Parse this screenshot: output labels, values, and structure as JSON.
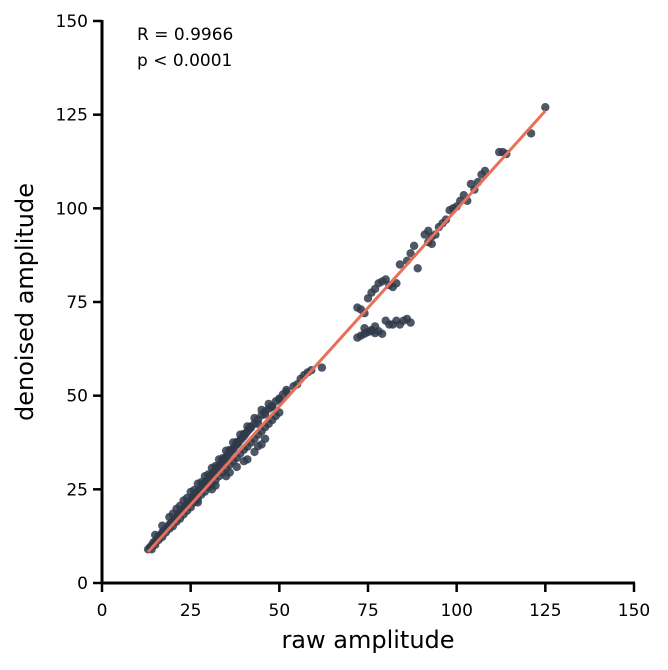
{
  "chart_data": {
    "type": "scatter",
    "title": "",
    "xlabel": "raw amplitude",
    "ylabel": "denoised amplitude",
    "xlim": [
      0,
      150
    ],
    "ylim": [
      0,
      150
    ],
    "xticks": [
      0,
      25,
      50,
      75,
      100,
      125,
      150
    ],
    "yticks": [
      0,
      25,
      50,
      75,
      100,
      125,
      150
    ],
    "grid": false,
    "annotations": [
      "R = 0.9966",
      "p < 0.0001"
    ],
    "colors": {
      "points": "#2f3a4a",
      "fit_line": "#e8705a"
    },
    "fit_line": {
      "x": [
        13,
        125
      ],
      "y": [
        8.3,
        126.0
      ]
    },
    "series": [
      {
        "points": [
          [
            13,
            9
          ],
          [
            13.5,
            9.5
          ],
          [
            14,
            10
          ],
          [
            14.5,
            10.8
          ],
          [
            15,
            11
          ],
          [
            15.5,
            11.5
          ],
          [
            16,
            12.5
          ],
          [
            16.5,
            12.8
          ],
          [
            17,
            13.5
          ],
          [
            17.5,
            14
          ],
          [
            18,
            14.2
          ],
          [
            18.5,
            15
          ],
          [
            19,
            15.6
          ],
          [
            19.5,
            16
          ],
          [
            20,
            16.5
          ],
          [
            20.5,
            17.2
          ],
          [
            21,
            17.5
          ],
          [
            21.5,
            18.3
          ],
          [
            22,
            18.8
          ],
          [
            22.5,
            19.5
          ],
          [
            23,
            19.8
          ],
          [
            23.5,
            20.5
          ],
          [
            24,
            21.2
          ],
          [
            24.5,
            21.5
          ],
          [
            25,
            22
          ],
          [
            25.5,
            22.8
          ],
          [
            26,
            23.4
          ],
          [
            26.5,
            23.8
          ],
          [
            27,
            24.5
          ],
          [
            27.5,
            25
          ],
          [
            28,
            25.5
          ],
          [
            28.5,
            26.2
          ],
          [
            29,
            26.8
          ],
          [
            29.5,
            27.2
          ],
          [
            30,
            27.8
          ],
          [
            30.5,
            28.5
          ],
          [
            31,
            29
          ],
          [
            31.5,
            29.6
          ],
          [
            32,
            30.2
          ],
          [
            32.5,
            30.8
          ],
          [
            33,
            31.2
          ],
          [
            33.5,
            31.8
          ],
          [
            34,
            32.5
          ],
          [
            34.5,
            33
          ],
          [
            35,
            33.5
          ],
          [
            35.5,
            34.2
          ],
          [
            36,
            34.8
          ],
          [
            36.5,
            35.3
          ],
          [
            37,
            35.8
          ],
          [
            37.5,
            36.5
          ],
          [
            38,
            37
          ],
          [
            38.5,
            37.5
          ],
          [
            39,
            38.2
          ],
          [
            39.5,
            38.7
          ],
          [
            40,
            39.2
          ],
          [
            40.5,
            39.8
          ],
          [
            41,
            40.5
          ],
          [
            41.5,
            41
          ],
          [
            42,
            41.5
          ],
          [
            43,
            42.5
          ],
          [
            44,
            43.6
          ],
          [
            45,
            44.8
          ],
          [
            46,
            45.8
          ],
          [
            47,
            46.5
          ],
          [
            48,
            47.2
          ],
          [
            49,
            48.5
          ],
          [
            50,
            49.2
          ],
          [
            51,
            50.3
          ],
          [
            52,
            51.5
          ],
          [
            14,
            9
          ],
          [
            15,
            10.2
          ],
          [
            16,
            11.5
          ],
          [
            17,
            12.3
          ],
          [
            18,
            13.5
          ],
          [
            19,
            14.5
          ],
          [
            20,
            15.2
          ],
          [
            21,
            16.4
          ],
          [
            22,
            17.2
          ],
          [
            23,
            18.3
          ],
          [
            24,
            19.3
          ],
          [
            25,
            20.2
          ],
          [
            26,
            21.5
          ],
          [
            27,
            22.3
          ],
          [
            28,
            23.6
          ],
          [
            29,
            24.4
          ],
          [
            30,
            25.6
          ],
          [
            31,
            26.5
          ],
          [
            32,
            27.4
          ],
          [
            33,
            28.5
          ],
          [
            34,
            29.5
          ],
          [
            35,
            30.5
          ],
          [
            36,
            31.6
          ],
          [
            37,
            32.5
          ],
          [
            38,
            33.4
          ],
          [
            39,
            34.6
          ],
          [
            40,
            35.6
          ],
          [
            41,
            36.4
          ],
          [
            42,
            37.5
          ],
          [
            43,
            38.5
          ],
          [
            44,
            39.6
          ],
          [
            45,
            40.5
          ],
          [
            46,
            41.6
          ],
          [
            47,
            42.5
          ],
          [
            48,
            43.5
          ],
          [
            49,
            44.6
          ],
          [
            50,
            45.5
          ],
          [
            15,
            12.8
          ],
          [
            17,
            15.3
          ],
          [
            19,
            17.6
          ],
          [
            21,
            19.8
          ],
          [
            23,
            22
          ],
          [
            25,
            24.3
          ],
          [
            27,
            26.5
          ],
          [
            29,
            28.5
          ],
          [
            31,
            30.7
          ],
          [
            33,
            33
          ],
          [
            35,
            35.3
          ],
          [
            37,
            37.5
          ],
          [
            39,
            39.6
          ],
          [
            41,
            41.8
          ],
          [
            43,
            44
          ],
          [
            45,
            46.2
          ],
          [
            47,
            47.8
          ],
          [
            20,
            18.5
          ],
          [
            22,
            20.6
          ],
          [
            24,
            22.7
          ],
          [
            26,
            24.8
          ],
          [
            28,
            26.9
          ],
          [
            30,
            29
          ],
          [
            32,
            31.2
          ],
          [
            34,
            33.3
          ],
          [
            36,
            35.5
          ],
          [
            38,
            37.6
          ],
          [
            40,
            39.8
          ],
          [
            42,
            41.8
          ],
          [
            44,
            42.5
          ],
          [
            46,
            45
          ],
          [
            48,
            47
          ],
          [
            50,
            49
          ],
          [
            52,
            51
          ],
          [
            54,
            52.5
          ],
          [
            55,
            53
          ],
          [
            56,
            54.5
          ],
          [
            57,
            55.5
          ],
          [
            58,
            56.2
          ],
          [
            59,
            56.8
          ],
          [
            62,
            57.5
          ],
          [
            38,
            31
          ],
          [
            40,
            32.5
          ],
          [
            41,
            33
          ],
          [
            43,
            35
          ],
          [
            45,
            37
          ],
          [
            46,
            38.5
          ],
          [
            44,
            36.5
          ],
          [
            31,
            25
          ],
          [
            32,
            26
          ],
          [
            27,
            21.5
          ],
          [
            35,
            28.5
          ],
          [
            36,
            29.5
          ],
          [
            72,
            73.5
          ],
          [
            73,
            73
          ],
          [
            74,
            72
          ],
          [
            75,
            76
          ],
          [
            76,
            77.5
          ],
          [
            77,
            78.5
          ],
          [
            78,
            80
          ],
          [
            79,
            80.5
          ],
          [
            80,
            81
          ],
          [
            81,
            79.5
          ],
          [
            82,
            79
          ],
          [
            83,
            80
          ],
          [
            84,
            85
          ],
          [
            86,
            86
          ],
          [
            87,
            88
          ],
          [
            88,
            90
          ],
          [
            89,
            84
          ],
          [
            91,
            93
          ],
          [
            92,
            94
          ],
          [
            93,
            92.5
          ],
          [
            94,
            93
          ],
          [
            95,
            95
          ],
          [
            96,
            96
          ],
          [
            97,
            97
          ],
          [
            98,
            99.5
          ],
          [
            99,
            100
          ],
          [
            100,
            100.5
          ],
          [
            101,
            102
          ],
          [
            102,
            103.5
          ],
          [
            103,
            102
          ],
          [
            104,
            106.5
          ],
          [
            105,
            105
          ],
          [
            106,
            107
          ],
          [
            107,
            109
          ],
          [
            108,
            110
          ],
          [
            112,
            115
          ],
          [
            113,
            115
          ],
          [
            114,
            114.5
          ],
          [
            121,
            120
          ],
          [
            125,
            127
          ],
          [
            72,
            65.5
          ],
          [
            73,
            66
          ],
          [
            74,
            68
          ],
          [
            75,
            67
          ],
          [
            76,
            67.5
          ],
          [
            77,
            68.5
          ],
          [
            78,
            67.2
          ],
          [
            79,
            66.5
          ],
          [
            80,
            70
          ],
          [
            81,
            69
          ],
          [
            82,
            69
          ],
          [
            83,
            70
          ],
          [
            84,
            69
          ],
          [
            85,
            70
          ],
          [
            86,
            70.5
          ],
          [
            87,
            69.5
          ],
          [
            77,
            66.7
          ],
          [
            76,
            67.2
          ],
          [
            74,
            66.5
          ],
          [
            92,
            91
          ],
          [
            93,
            90.5
          ]
        ]
      }
    ]
  }
}
